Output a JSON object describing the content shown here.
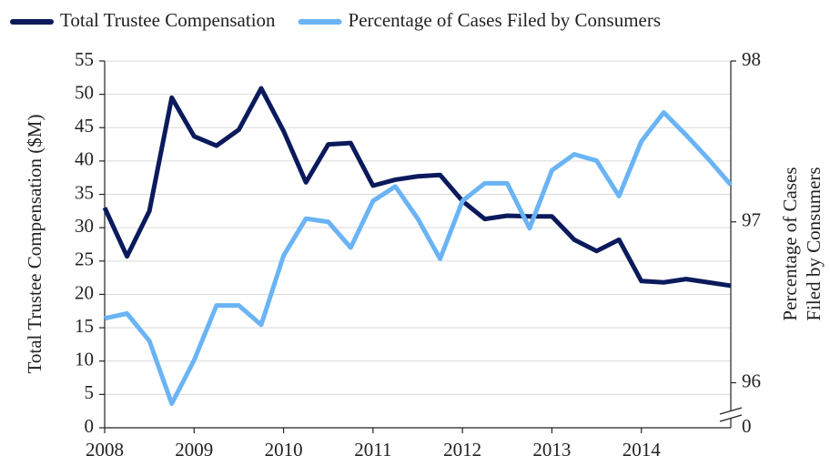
{
  "chart_data": {
    "type": "line",
    "legend": "top",
    "x": [
      2008,
      2008.25,
      2008.5,
      2008.75,
      2009,
      2009.25,
      2009.5,
      2009.75,
      2010,
      2010.25,
      2010.5,
      2010.75,
      2011,
      2011.25,
      2011.5,
      2011.75,
      2012,
      2012.25,
      2012.5,
      2012.75,
      2013,
      2013.25,
      2013.5,
      2013.75,
      2014,
      2014.25,
      2014.5,
      2014.75,
      2015
    ],
    "xlim": [
      2008,
      2015
    ],
    "xticks": [
      2008,
      2009,
      2010,
      2011,
      2012,
      2013,
      2014
    ],
    "ylim": [
      0,
      55
    ],
    "yticks": [
      0,
      5,
      10,
      15,
      20,
      25,
      30,
      35,
      40,
      45,
      50,
      55
    ],
    "y2lim": [
      95.72,
      98
    ],
    "y2ticks": [
      96,
      97,
      98
    ],
    "y2_break_label": "0",
    "grid": true,
    "ylabel": "Total Trustee Compensation ($M)",
    "y2label": [
      "Percentage of Cases",
      "Filed by Consumers"
    ],
    "series": [
      {
        "name": "Total Trustee Compensation",
        "color": "#0b1a5c",
        "values": [
          33.0,
          25.7,
          32.5,
          49.5,
          43.7,
          42.3,
          44.7,
          50.9,
          44.5,
          36.8,
          42.5,
          42.7,
          36.3,
          37.2,
          37.7,
          37.9,
          34.0,
          31.3,
          31.8,
          31.7,
          31.7,
          28.2,
          26.5,
          28.2,
          22.0,
          21.8,
          22.3,
          21.8,
          21.3
        ]
      },
      {
        "name": "Percentage of Cases Filed by Consumers",
        "color": "#6ab4f5",
        "axis": "y2",
        "values": [
          96.4,
          96.43,
          96.26,
          95.87,
          96.14,
          96.48,
          96.48,
          96.36,
          96.79,
          97.02,
          97.0,
          96.84,
          97.13,
          97.22,
          97.02,
          96.77,
          97.13,
          97.24,
          97.24,
          96.96,
          97.32,
          97.42,
          97.38,
          97.16,
          97.5,
          97.68,
          97.54,
          97.39,
          97.23
        ]
      }
    ]
  }
}
